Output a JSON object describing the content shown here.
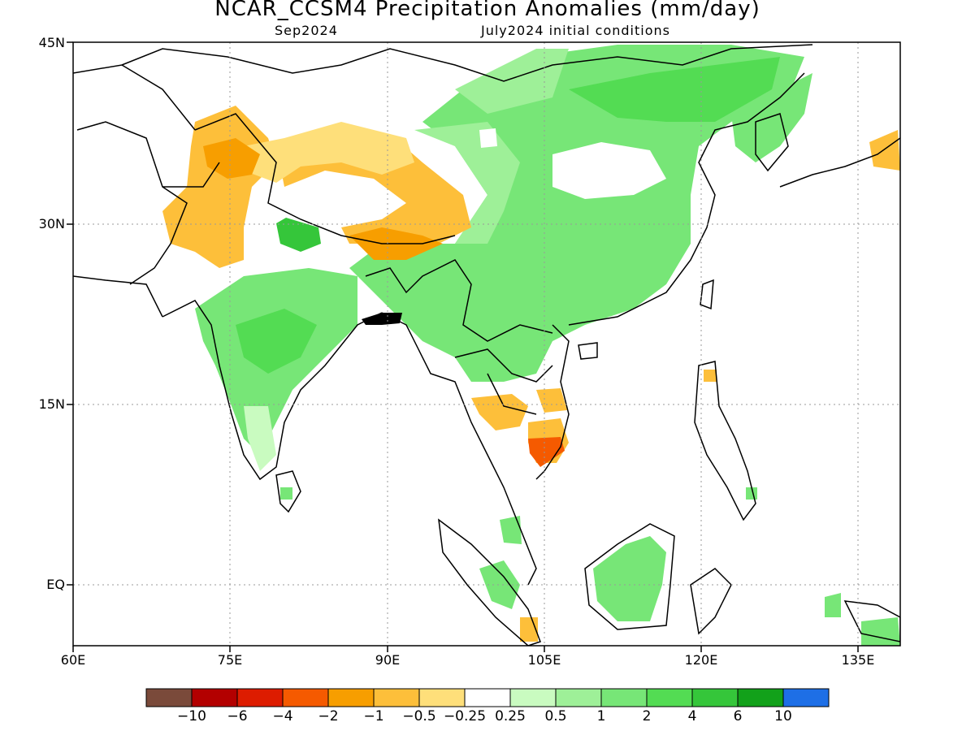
{
  "title": "NCAR_CCSM4 Precipitation Anomalies (mm/day)",
  "subtitle_left": "Sep2024",
  "subtitle_right": "July2024 initial conditions",
  "lat_labels": [
    "45N",
    "30N",
    "15N",
    "EQ"
  ],
  "lon_labels": [
    "60E",
    "75E",
    "90E",
    "105E",
    "120E",
    "135E"
  ],
  "colorbar": {
    "colors": [
      "#7a4a3a",
      "#b30000",
      "#dd1c00",
      "#f55a00",
      "#f79e00",
      "#fdbf3a",
      "#fedf7a",
      "#ffffff",
      "#c9fbc0",
      "#9ef098",
      "#77e677",
      "#53dc53",
      "#35c63a",
      "#12a11a",
      "#1e6fe6"
    ],
    "labels": [
      "−10",
      "−6",
      "−4",
      "−2",
      "−1",
      "−0.5",
      "−0.25",
      "0.25",
      "0.5",
      "1",
      "2",
      "4",
      "6",
      "10"
    ]
  }
}
